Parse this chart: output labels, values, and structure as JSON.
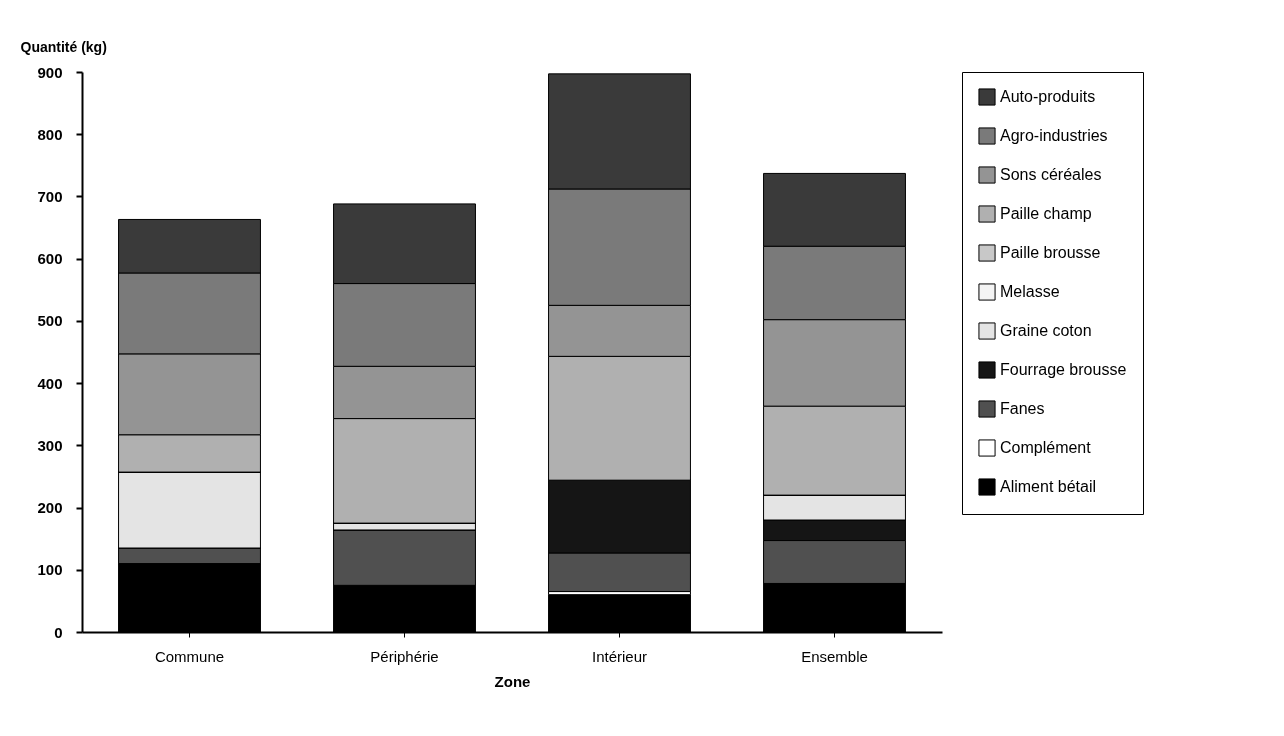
{
  "chart_data": {
    "type": "bar",
    "stacked": true,
    "xlabel": "Zone",
    "ylabel": "Quantité (kg)",
    "categories": [
      "Commune",
      "Périphérie",
      "Intérieur",
      "Ensemble"
    ],
    "ylim": [
      0,
      900
    ],
    "yticks": [
      0,
      100,
      200,
      300,
      400,
      500,
      600,
      700,
      800,
      900
    ],
    "grid": false,
    "legend": "right",
    "series": [
      {
        "name": "Aliment bétail",
        "color": "#000000",
        "values": [
          110,
          75,
          60,
          78
        ]
      },
      {
        "name": "Complément",
        "color": "#ffffff",
        "values": [
          0,
          0,
          5,
          0
        ]
      },
      {
        "name": "Fanes",
        "color": "#505050",
        "values": [
          25,
          89,
          62,
          69
        ]
      },
      {
        "name": "Fourrage brousse",
        "color": "#151515",
        "values": [
          0,
          0,
          117,
          33
        ]
      },
      {
        "name": "Graine coton",
        "color": "#e4e4e4",
        "values": [
          122,
          11,
          0,
          40
        ]
      },
      {
        "name": "Melasse",
        "color": "#f4f4f4",
        "values": [
          0,
          0,
          0,
          0
        ]
      },
      {
        "name": "Paille brousse",
        "color": "#c8c8c8",
        "values": [
          0,
          0,
          0,
          0
        ]
      },
      {
        "name": "Paille champ",
        "color": "#b0b0b0",
        "values": [
          60,
          168,
          199,
          143
        ]
      },
      {
        "name": "Sons céréales",
        "color": "#949494",
        "values": [
          130,
          84,
          82,
          139
        ]
      },
      {
        "name": "Agro-industries",
        "color": "#7a7a7a",
        "values": [
          130,
          133,
          187,
          118
        ]
      },
      {
        "name": "Auto-produits",
        "color": "#3a3a3a",
        "values": [
          86,
          128,
          185,
          117
        ]
      }
    ]
  }
}
